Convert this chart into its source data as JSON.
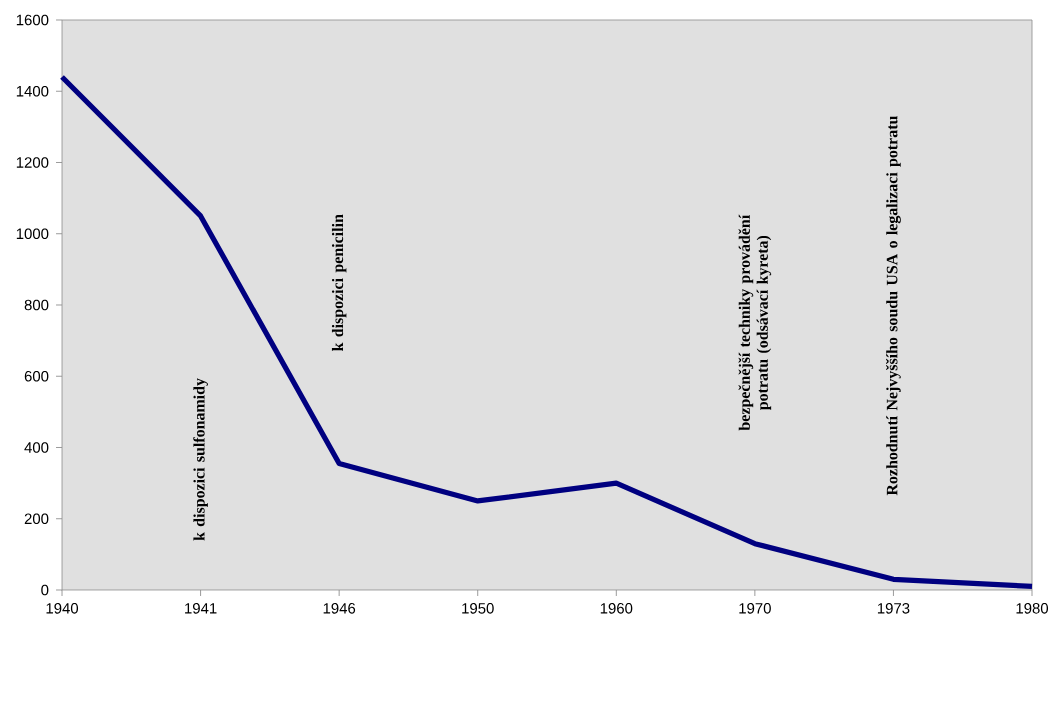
{
  "chart_data": {
    "type": "line",
    "categories": [
      "1940",
      "1941",
      "1946",
      "1950",
      "1960",
      "1970",
      "1973",
      "1980"
    ],
    "series": [
      {
        "color": "#000080",
        "values": [
          1440,
          1050,
          355,
          250,
          300,
          130,
          30,
          10
        ]
      }
    ],
    "ylim": [
      0,
      1600
    ],
    "yticks": [
      0,
      200,
      400,
      600,
      800,
      1000,
      1200,
      1400,
      1600
    ],
    "grid": false,
    "marker": "none",
    "line_style": "solid",
    "annotations": [
      "k dispozici sulfonamidy",
      "k dispozici penicilin",
      "bezpečnější techniky provádění potratu (odsávací kyreta)",
      "Rozhodnutí Nejvyššího soudu USA o legalizaci potratu"
    ]
  }
}
